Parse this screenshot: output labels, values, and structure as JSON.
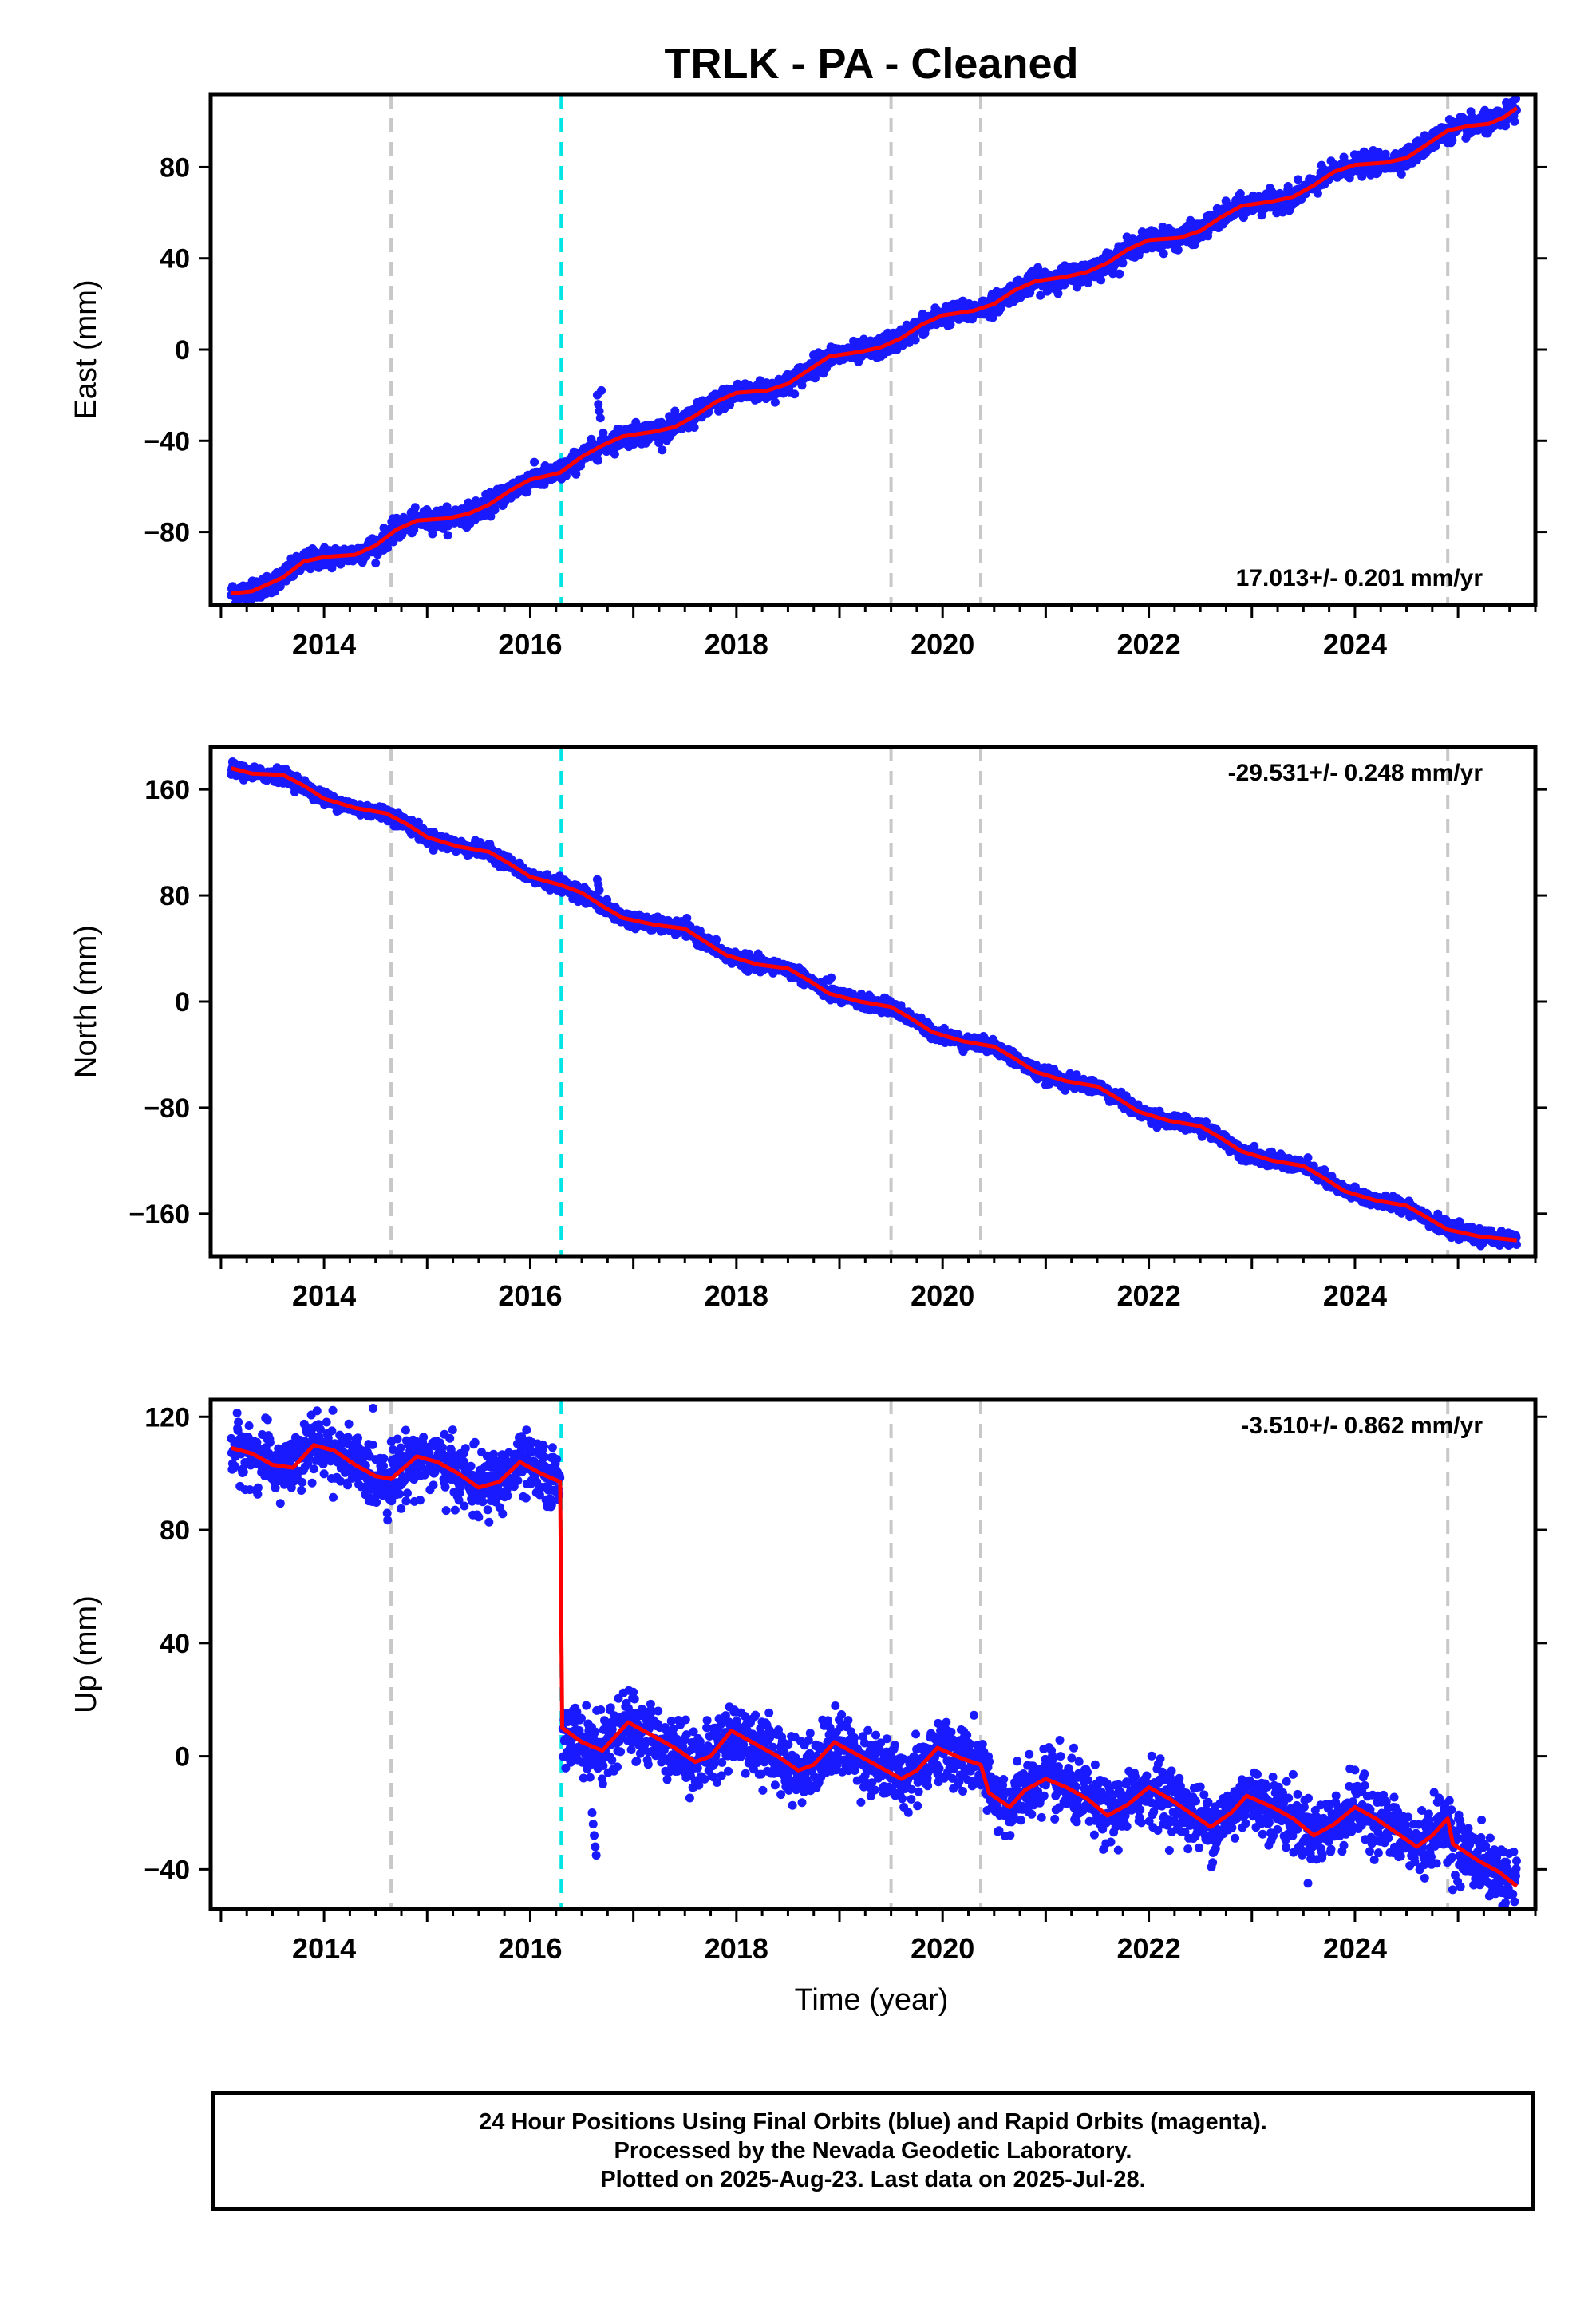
{
  "chart_data": {
    "title": "TRLK  - PA - Cleaned",
    "type": "scatter",
    "xlabel": "Time (year)",
    "x_ticks": [
      2014,
      2016,
      2018,
      2020,
      2022,
      2024
    ],
    "xlim": [
      2012.9,
      2025.75
    ],
    "vertical_lines": {
      "gray_dashed": [
        2014.65,
        2019.5,
        2020.37,
        2024.9
      ],
      "cyan_dashed": [
        2016.3
      ]
    },
    "colors": {
      "data": "#1a1aff",
      "model": "#ff0000",
      "gray_line": "#c8c8c8",
      "cyan_line": "#00e5e5"
    },
    "panels": [
      {
        "name": "east",
        "ylabel": "East (mm)",
        "ylim": [
          -112,
          112
        ],
        "y_ticks": [
          -80,
          -40,
          0,
          40,
          80
        ],
        "rate_label": "17.013+/- 0.201 mm/yr",
        "noise": 2.2,
        "model": [
          [
            2013.1,
            -107
          ],
          [
            2013.3,
            -106
          ],
          [
            2013.6,
            -100
          ],
          [
            2013.8,
            -93
          ],
          [
            2014.0,
            -91
          ],
          [
            2014.3,
            -90
          ],
          [
            2014.5,
            -86
          ],
          [
            2014.7,
            -79
          ],
          [
            2014.9,
            -75
          ],
          [
            2015.2,
            -74
          ],
          [
            2015.4,
            -72
          ],
          [
            2015.6,
            -68
          ],
          [
            2015.8,
            -62
          ],
          [
            2016.0,
            -57
          ],
          [
            2016.2,
            -55
          ],
          [
            2016.29,
            -54
          ],
          [
            2016.5,
            -47
          ],
          [
            2016.7,
            -42
          ],
          [
            2016.9,
            -38
          ],
          [
            2017.2,
            -36
          ],
          [
            2017.4,
            -34
          ],
          [
            2017.6,
            -29
          ],
          [
            2017.8,
            -23
          ],
          [
            2018.0,
            -19
          ],
          [
            2018.3,
            -18
          ],
          [
            2018.5,
            -15
          ],
          [
            2018.7,
            -9
          ],
          [
            2018.9,
            -3
          ],
          [
            2019.2,
            -1
          ],
          [
            2019.4,
            1
          ],
          [
            2019.6,
            5
          ],
          [
            2019.8,
            11
          ],
          [
            2020.0,
            15
          ],
          [
            2020.3,
            17
          ],
          [
            2020.5,
            20
          ],
          [
            2020.7,
            26
          ],
          [
            2020.9,
            30
          ],
          [
            2021.2,
            32
          ],
          [
            2021.4,
            34
          ],
          [
            2021.6,
            38
          ],
          [
            2021.8,
            44
          ],
          [
            2022.0,
            48
          ],
          [
            2022.3,
            49
          ],
          [
            2022.5,
            52
          ],
          [
            2022.7,
            58
          ],
          [
            2022.9,
            63
          ],
          [
            2023.2,
            65
          ],
          [
            2023.4,
            67
          ],
          [
            2023.6,
            72
          ],
          [
            2023.8,
            78
          ],
          [
            2024.0,
            81
          ],
          [
            2024.3,
            82
          ],
          [
            2024.5,
            84
          ],
          [
            2024.7,
            90
          ],
          [
            2024.9,
            96
          ],
          [
            2025.1,
            98
          ],
          [
            2025.3,
            99
          ],
          [
            2025.45,
            102
          ],
          [
            2025.57,
            106
          ]
        ],
        "outliers": [
          [
            2016.65,
            -20
          ],
          [
            2016.66,
            -24
          ],
          [
            2016.67,
            -27
          ],
          [
            2016.68,
            -30
          ],
          [
            2016.69,
            -18
          ]
        ]
      },
      {
        "name": "north",
        "ylabel": "North (mm)",
        "ylim": [
          -192,
          192
        ],
        "y_ticks": [
          -160,
          -80,
          0,
          80,
          160
        ],
        "rate_label": "-29.531+/- 0.248 mm/yr",
        "noise": 2.5,
        "model": [
          [
            2013.1,
            176
          ],
          [
            2013.3,
            172
          ],
          [
            2013.6,
            171
          ],
          [
            2013.8,
            163
          ],
          [
            2014.0,
            153
          ],
          [
            2014.3,
            146
          ],
          [
            2014.6,
            142
          ],
          [
            2014.8,
            134
          ],
          [
            2015.0,
            124
          ],
          [
            2015.3,
            117
          ],
          [
            2015.6,
            113
          ],
          [
            2015.8,
            104
          ],
          [
            2016.0,
            94
          ],
          [
            2016.29,
            88
          ],
          [
            2016.5,
            82
          ],
          [
            2016.7,
            72
          ],
          [
            2016.9,
            63
          ],
          [
            2017.2,
            58
          ],
          [
            2017.5,
            55
          ],
          [
            2017.7,
            45
          ],
          [
            2017.9,
            35
          ],
          [
            2018.2,
            28
          ],
          [
            2018.5,
            25
          ],
          [
            2018.7,
            16
          ],
          [
            2018.9,
            6
          ],
          [
            2019.2,
            0
          ],
          [
            2019.5,
            -4
          ],
          [
            2019.7,
            -13
          ],
          [
            2019.9,
            -23
          ],
          [
            2020.2,
            -30
          ],
          [
            2020.5,
            -34
          ],
          [
            2020.7,
            -43
          ],
          [
            2020.9,
            -53
          ],
          [
            2021.2,
            -60
          ],
          [
            2021.5,
            -64
          ],
          [
            2021.7,
            -73
          ],
          [
            2021.9,
            -83
          ],
          [
            2022.2,
            -90
          ],
          [
            2022.5,
            -94
          ],
          [
            2022.7,
            -103
          ],
          [
            2022.9,
            -113
          ],
          [
            2023.2,
            -120
          ],
          [
            2023.5,
            -124
          ],
          [
            2023.7,
            -133
          ],
          [
            2023.9,
            -143
          ],
          [
            2024.2,
            -150
          ],
          [
            2024.5,
            -154
          ],
          [
            2024.7,
            -163
          ],
          [
            2024.9,
            -172
          ],
          [
            2025.2,
            -177
          ],
          [
            2025.57,
            -180
          ]
        ],
        "outliers": [
          [
            2016.65,
            92
          ],
          [
            2016.66,
            88
          ],
          [
            2016.67,
            84
          ],
          [
            2018.9,
            16
          ],
          [
            2018.92,
            18
          ]
        ]
      },
      {
        "name": "up",
        "ylabel": "Up (mm)",
        "ylim": [
          -54,
          126
        ],
        "y_ticks": [
          -40,
          0,
          40,
          80,
          120
        ],
        "rate_label": "-3.510+/- 0.862 mm/yr",
        "noise": 5.5,
        "step": {
          "x": 2016.3,
          "before": 98,
          "after": 10
        },
        "model": [
          [
            2013.1,
            109
          ],
          [
            2013.3,
            107
          ],
          [
            2013.5,
            103
          ],
          [
            2013.7,
            102
          ],
          [
            2013.9,
            110
          ],
          [
            2014.1,
            108
          ],
          [
            2014.3,
            103
          ],
          [
            2014.5,
            99
          ],
          [
            2014.65,
            98
          ],
          [
            2014.9,
            106
          ],
          [
            2015.1,
            104
          ],
          [
            2015.3,
            100
          ],
          [
            2015.5,
            95
          ],
          [
            2015.7,
            97
          ],
          [
            2015.9,
            104
          ],
          [
            2016.1,
            100
          ],
          [
            2016.29,
            97
          ],
          [
            2016.31,
            10
          ],
          [
            2016.5,
            5
          ],
          [
            2016.7,
            2
          ],
          [
            2016.95,
            12
          ],
          [
            2017.2,
            7
          ],
          [
            2017.4,
            3
          ],
          [
            2017.6,
            -2
          ],
          [
            2017.75,
            0
          ],
          [
            2017.95,
            9
          ],
          [
            2018.2,
            4
          ],
          [
            2018.4,
            0
          ],
          [
            2018.6,
            -5
          ],
          [
            2018.75,
            -3
          ],
          [
            2018.95,
            5
          ],
          [
            2019.2,
            0
          ],
          [
            2019.4,
            -4
          ],
          [
            2019.6,
            -8
          ],
          [
            2019.75,
            -5
          ],
          [
            2019.95,
            3
          ],
          [
            2020.2,
            -1
          ],
          [
            2020.37,
            -3
          ],
          [
            2020.45,
            -13
          ],
          [
            2020.65,
            -18
          ],
          [
            2020.8,
            -12
          ],
          [
            2021.0,
            -8
          ],
          [
            2021.2,
            -11
          ],
          [
            2021.4,
            -15
          ],
          [
            2021.6,
            -21
          ],
          [
            2021.8,
            -17
          ],
          [
            2022.0,
            -11
          ],
          [
            2022.2,
            -15
          ],
          [
            2022.4,
            -20
          ],
          [
            2022.6,
            -25
          ],
          [
            2022.8,
            -20
          ],
          [
            2022.95,
            -14
          ],
          [
            2023.2,
            -18
          ],
          [
            2023.4,
            -22
          ],
          [
            2023.6,
            -28
          ],
          [
            2023.8,
            -24
          ],
          [
            2024.0,
            -18
          ],
          [
            2024.2,
            -22
          ],
          [
            2024.4,
            -27
          ],
          [
            2024.6,
            -32
          ],
          [
            2024.75,
            -28
          ],
          [
            2024.9,
            -22
          ],
          [
            2024.95,
            -31
          ],
          [
            2025.2,
            -37
          ],
          [
            2025.4,
            -41
          ],
          [
            2025.57,
            -46
          ]
        ],
        "outliers": [
          [
            2016.6,
            -20
          ],
          [
            2016.61,
            -24
          ],
          [
            2016.62,
            -28
          ],
          [
            2016.63,
            -32
          ],
          [
            2016.64,
            -35
          ]
        ]
      }
    ]
  },
  "footer": {
    "line1": "24 Hour Positions Using Final Orbits (blue) and Rapid Orbits (magenta).",
    "line2": "Processed by the Nevada Geodetic Laboratory.",
    "line3": "Plotted on 2025-Aug-23. Last data on 2025-Jul-28."
  }
}
